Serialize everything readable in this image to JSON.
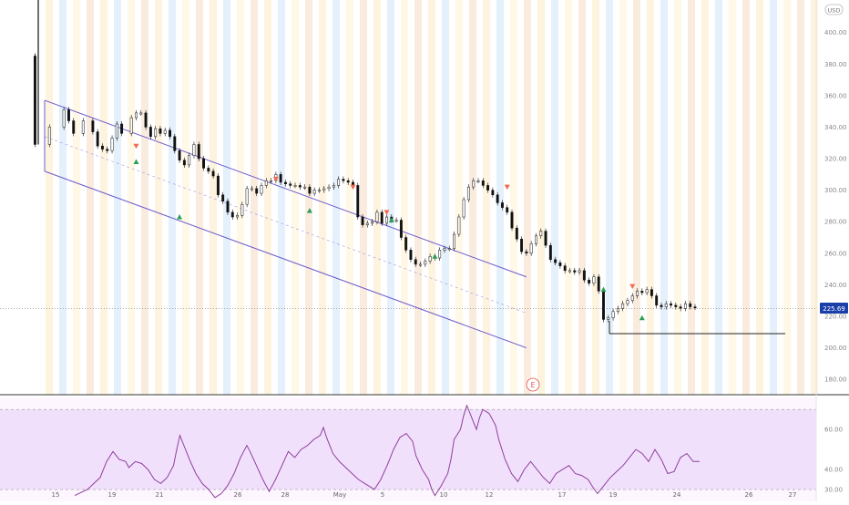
{
  "chart_data": {
    "type": "candlestick",
    "currency_badge": "USD",
    "price_axis": {
      "ticks": [
        "400.00",
        "380.00",
        "360.00",
        "340.00",
        "320.00",
        "300.00",
        "280.00",
        "260.00",
        "240.00",
        "220.00",
        "200.00",
        "180.00"
      ],
      "ylim": [
        172,
        416
      ],
      "last_price": "225.69",
      "last_price_color": "#1b3fa8"
    },
    "date_ticks": [
      "15",
      "19",
      "21",
      "26",
      "28",
      "May",
      "5",
      "10",
      "12",
      "17",
      "19",
      "24",
      "26",
      "27"
    ],
    "earnings_marker": "E",
    "price_candles": [
      [
        -2,
        385
      ],
      [
        -2,
        358
      ],
      [
        -2,
        329
      ],
      [
        1,
        340
      ],
      [
        4,
        351
      ],
      [
        5,
        344
      ],
      [
        6,
        336
      ],
      [
        8,
        344
      ],
      [
        10,
        337
      ],
      [
        11,
        328
      ],
      [
        12,
        326
      ],
      [
        13,
        325
      ],
      [
        14,
        333
      ],
      [
        15,
        342
      ],
      [
        16,
        336
      ],
      [
        18,
        346
      ],
      [
        19,
        349
      ],
      [
        20,
        349
      ],
      [
        21,
        340
      ],
      [
        22,
        334
      ],
      [
        23,
        339
      ],
      [
        24,
        336
      ],
      [
        25,
        338
      ],
      [
        26,
        334
      ],
      [
        27,
        325
      ],
      [
        28,
        319
      ],
      [
        29,
        316
      ],
      [
        30,
        322
      ],
      [
        31,
        329
      ],
      [
        32,
        320
      ],
      [
        33,
        314
      ],
      [
        34,
        312
      ],
      [
        35,
        309
      ],
      [
        36,
        297
      ],
      [
        37,
        293
      ],
      [
        38,
        286
      ],
      [
        39,
        283
      ],
      [
        40,
        284
      ],
      [
        41,
        291
      ],
      [
        42,
        301
      ],
      [
        43,
        301
      ],
      [
        44,
        298
      ],
      [
        45,
        303
      ],
      [
        46,
        306
      ],
      [
        47,
        306
      ],
      [
        48,
        310
      ],
      [
        49,
        305
      ],
      [
        50,
        304
      ],
      [
        51,
        303
      ],
      [
        52,
        303
      ],
      [
        53,
        302
      ],
      [
        54,
        302
      ],
      [
        55,
        298
      ],
      [
        56,
        300
      ],
      [
        57,
        300
      ],
      [
        58,
        301
      ],
      [
        59,
        302
      ],
      [
        60,
        303
      ],
      [
        61,
        307
      ],
      [
        62,
        306
      ],
      [
        63,
        305
      ],
      [
        64,
        303
      ],
      [
        65,
        283
      ],
      [
        66,
        278
      ],
      [
        67,
        279
      ],
      [
        68,
        280
      ],
      [
        69,
        286
      ],
      [
        70,
        279
      ],
      [
        71,
        283
      ],
      [
        72,
        281
      ],
      [
        73,
        281
      ],
      [
        74,
        270
      ],
      [
        75,
        262
      ],
      [
        76,
        256
      ],
      [
        77,
        253
      ],
      [
        78,
        253
      ],
      [
        79,
        255
      ],
      [
        80,
        258
      ],
      [
        81,
        257
      ],
      [
        82,
        262
      ],
      [
        83,
        263
      ],
      [
        84,
        263
      ],
      [
        85,
        272
      ],
      [
        86,
        283
      ],
      [
        87,
        294
      ],
      [
        88,
        302
      ],
      [
        89,
        306
      ],
      [
        90,
        306
      ],
      [
        91,
        303
      ],
      [
        92,
        300
      ],
      [
        93,
        297
      ],
      [
        94,
        292
      ],
      [
        95,
        289
      ],
      [
        96,
        286
      ],
      [
        97,
        276
      ],
      [
        98,
        269
      ],
      [
        99,
        261
      ],
      [
        100,
        260
      ],
      [
        101,
        266
      ],
      [
        102,
        271
      ],
      [
        103,
        274
      ],
      [
        104,
        265
      ],
      [
        105,
        256
      ],
      [
        106,
        254
      ],
      [
        107,
        252
      ],
      [
        108,
        249
      ],
      [
        109,
        249
      ],
      [
        110,
        248
      ],
      [
        111,
        249
      ],
      [
        112,
        243
      ],
      [
        113,
        241
      ],
      [
        114,
        245
      ],
      [
        115,
        236
      ],
      [
        116,
        218
      ],
      [
        117,
        219
      ],
      [
        118,
        223
      ],
      [
        119,
        225
      ],
      [
        120,
        228
      ],
      [
        121,
        230
      ],
      [
        122,
        233
      ],
      [
        123,
        236
      ],
      [
        124,
        235
      ],
      [
        125,
        237
      ],
      [
        126,
        233
      ],
      [
        127,
        227
      ],
      [
        128,
        226
      ],
      [
        129,
        228
      ],
      [
        130,
        227
      ],
      [
        131,
        226
      ],
      [
        132,
        225
      ],
      [
        133,
        228
      ],
      [
        134,
        226
      ],
      [
        135,
        225.69
      ]
    ],
    "channel": {
      "upper": [
        [
          0,
          357
        ],
        [
          100,
          245
        ]
      ],
      "lower": [
        [
          0,
          312
        ],
        [
          100,
          200
        ]
      ],
      "midline": [
        [
          0,
          334
        ],
        [
          100,
          222
        ]
      ],
      "color": "#6a5acd"
    },
    "horizontal_level": 209,
    "signals": [
      {
        "day": 19,
        "price": 328,
        "dir": "down"
      },
      {
        "day": 19,
        "price": 318,
        "dir": "up"
      },
      {
        "day": 28,
        "price": 283,
        "dir": "up"
      },
      {
        "day": 48,
        "price": 307,
        "dir": "down"
      },
      {
        "day": 55,
        "price": 287,
        "dir": "up"
      },
      {
        "day": 64,
        "price": 302,
        "dir": "down"
      },
      {
        "day": 71,
        "price": 286,
        "dir": "down"
      },
      {
        "day": 72,
        "price": 281,
        "dir": "up"
      },
      {
        "day": 81,
        "price": 258,
        "dir": "up"
      },
      {
        "day": 96,
        "price": 302,
        "dir": "down"
      },
      {
        "day": 116,
        "price": 237,
        "dir": "up"
      },
      {
        "day": 122,
        "price": 239,
        "dir": "down"
      },
      {
        "day": 124,
        "price": 219,
        "dir": "up"
      }
    ],
    "rsi": {
      "ticks": [
        "60.00",
        "40.00",
        "30.00"
      ],
      "ylim": [
        25,
        76
      ],
      "upper_band": 70,
      "lower_band": 30,
      "color": "#8e3f9b",
      "band_fill": "#efdcfb",
      "values": [
        [
          0,
          27
        ],
        [
          4,
          30
        ],
        [
          8,
          36
        ],
        [
          10,
          44
        ],
        [
          12,
          49
        ],
        [
          14,
          45
        ],
        [
          16,
          44
        ],
        [
          17,
          41
        ],
        [
          19,
          44
        ],
        [
          21,
          43
        ],
        [
          23,
          40
        ],
        [
          25,
          35
        ],
        [
          27,
          33
        ],
        [
          29,
          36
        ],
        [
          31,
          42
        ],
        [
          32,
          50
        ],
        [
          33,
          57
        ],
        [
          34,
          53
        ],
        [
          36,
          45
        ],
        [
          38,
          38
        ],
        [
          40,
          33
        ],
        [
          42,
          30
        ],
        [
          44,
          26
        ],
        [
          46,
          28
        ],
        [
          48,
          32
        ],
        [
          50,
          38
        ],
        [
          52,
          46
        ],
        [
          54,
          52
        ],
        [
          55,
          49
        ],
        [
          57,
          42
        ],
        [
          59,
          35
        ],
        [
          61,
          29
        ],
        [
          63,
          35
        ],
        [
          65,
          42
        ],
        [
          67,
          49
        ],
        [
          69,
          46
        ],
        [
          71,
          50
        ],
        [
          73,
          52
        ],
        [
          75,
          55
        ],
        [
          77,
          57
        ],
        [
          78,
          61
        ],
        [
          79,
          56
        ],
        [
          81,
          48
        ],
        [
          83,
          44
        ],
        [
          85,
          41
        ],
        [
          87,
          38
        ],
        [
          89,
          35
        ],
        [
          91,
          33
        ],
        [
          93,
          31
        ],
        [
          94,
          30
        ],
        [
          96,
          35
        ],
        [
          98,
          42
        ],
        [
          100,
          50
        ],
        [
          102,
          56
        ],
        [
          104,
          58
        ],
        [
          106,
          54
        ],
        [
          107,
          47
        ],
        [
          109,
          40
        ],
        [
          111,
          35
        ],
        [
          112,
          30
        ],
        [
          113,
          27
        ],
        [
          115,
          32
        ],
        [
          117,
          38
        ],
        [
          118,
          45
        ],
        [
          119,
          55
        ],
        [
          121,
          60
        ],
        [
          122,
          67
        ],
        [
          123,
          72
        ],
        [
          124,
          68
        ],
        [
          125,
          64
        ],
        [
          126,
          60
        ],
        [
          127,
          66
        ],
        [
          128,
          70
        ],
        [
          130,
          68
        ],
        [
          132,
          62
        ],
        [
          133,
          55
        ],
        [
          135,
          45
        ],
        [
          137,
          38
        ],
        [
          139,
          34
        ],
        [
          141,
          40
        ],
        [
          143,
          44
        ],
        [
          145,
          40
        ],
        [
          147,
          36
        ],
        [
          149,
          33
        ],
        [
          151,
          38
        ],
        [
          153,
          40
        ],
        [
          155,
          42
        ],
        [
          157,
          38
        ],
        [
          159,
          37
        ],
        [
          161,
          35
        ],
        [
          163,
          30
        ],
        [
          164,
          28
        ],
        [
          166,
          32
        ],
        [
          168,
          36
        ],
        [
          170,
          39
        ],
        [
          172,
          42
        ],
        [
          174,
          46
        ],
        [
          176,
          50
        ],
        [
          178,
          48
        ],
        [
          180,
          44
        ],
        [
          182,
          50
        ],
        [
          184,
          45
        ],
        [
          186,
          38
        ],
        [
          188,
          39
        ],
        [
          190,
          46
        ],
        [
          192,
          48
        ],
        [
          194,
          44
        ],
        [
          196,
          44
        ]
      ]
    }
  }
}
